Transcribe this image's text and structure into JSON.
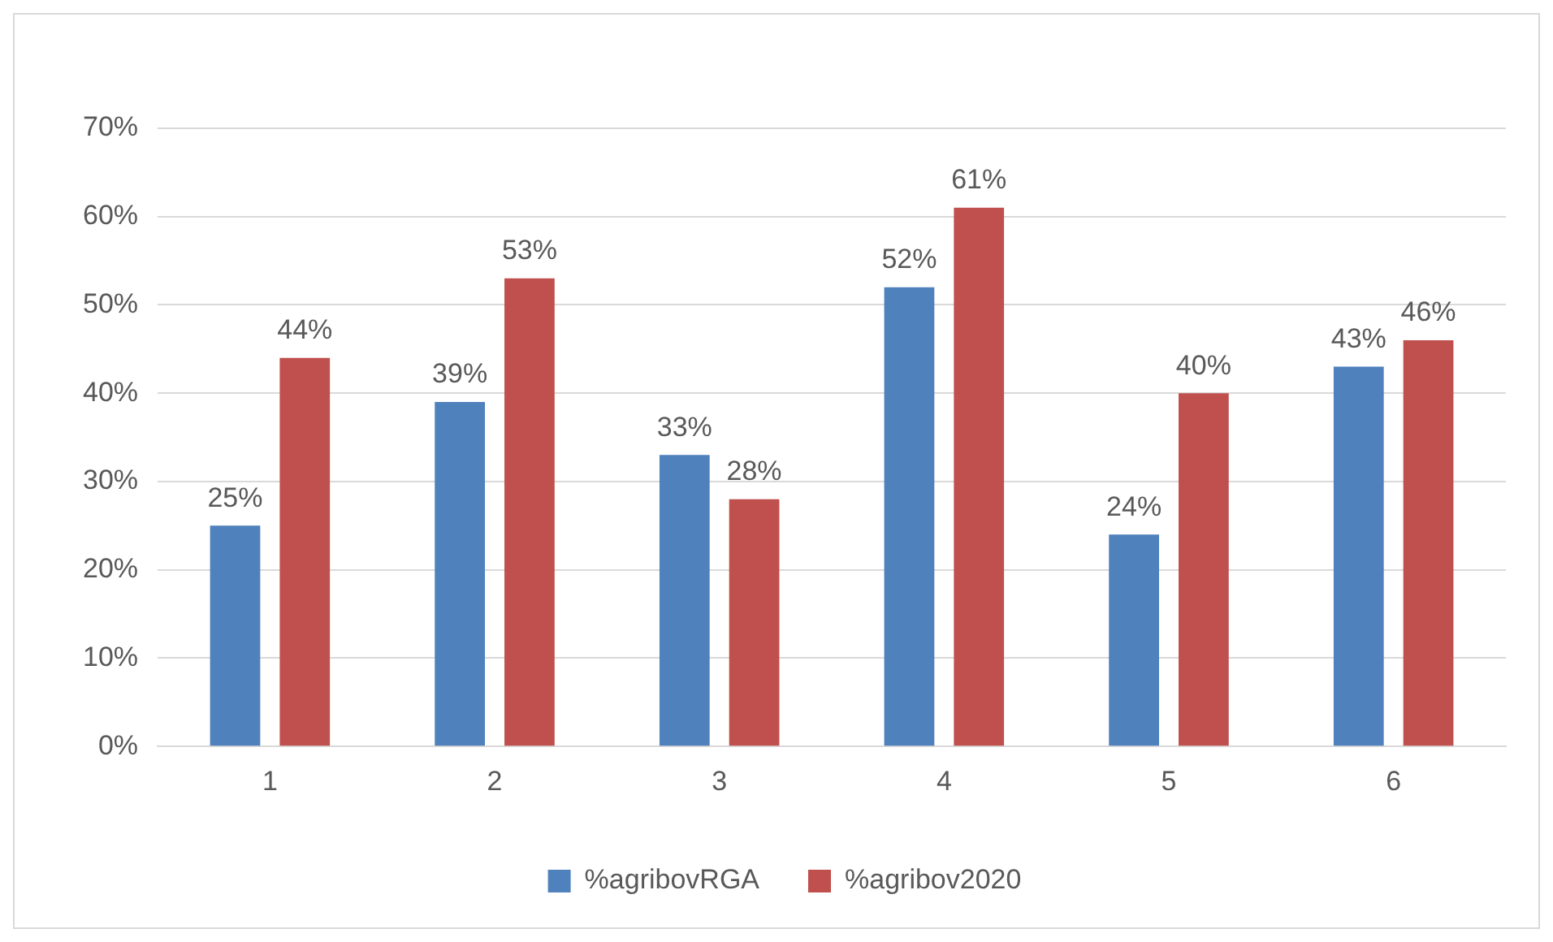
{
  "chart_data": {
    "type": "bar",
    "categories": [
      "1",
      "2",
      "3",
      "4",
      "5",
      "6"
    ],
    "series": [
      {
        "name": "%agribovRGA",
        "color": "#4f81bd",
        "values": [
          25,
          39,
          33,
          52,
          24,
          43
        ],
        "value_labels": [
          "25%",
          "39%",
          "33%",
          "52%",
          "24%",
          "43%"
        ]
      },
      {
        "name": "%agribov2020",
        "color": "#c0504d",
        "values": [
          44,
          53,
          28,
          61,
          40,
          46
        ],
        "value_labels": [
          "44%",
          "53%",
          "28%",
          "61%",
          "40%",
          "46%"
        ]
      }
    ],
    "ylim": [
      0,
      70
    ],
    "yticks": [
      {
        "value": 0,
        "label": "0%"
      },
      {
        "value": 10,
        "label": "10%"
      },
      {
        "value": 20,
        "label": "20%"
      },
      {
        "value": 30,
        "label": "30%"
      },
      {
        "value": 40,
        "label": "40%"
      },
      {
        "value": 50,
        "label": "50%"
      },
      {
        "value": 60,
        "label": "60%"
      },
      {
        "value": 70,
        "label": "70%"
      }
    ],
    "grid": "y",
    "legend": "bottom"
  }
}
